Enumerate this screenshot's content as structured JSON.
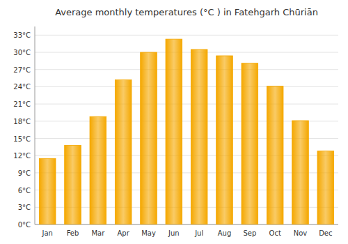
{
  "chart_data": {
    "type": "bar",
    "title": "Average monthly temperatures (°C ) in Fatehgarh Chūriān",
    "categories": [
      "Jan",
      "Feb",
      "Mar",
      "Apr",
      "May",
      "Jun",
      "Jul",
      "Aug",
      "Sep",
      "Oct",
      "Nov",
      "Dec"
    ],
    "values": [
      11.5,
      13.8,
      18.8,
      25.2,
      30.0,
      32.3,
      30.5,
      29.4,
      28.1,
      24.1,
      18.1,
      12.8
    ],
    "color": "#F5A800",
    "ylim": [
      0,
      34.5
    ],
    "yticks": [
      {
        "value": 0,
        "label": "0°C"
      },
      {
        "value": 3,
        "label": "3°C"
      },
      {
        "value": 6,
        "label": "6°C"
      },
      {
        "value": 9,
        "label": "9°C"
      },
      {
        "value": 12,
        "label": "12°C"
      },
      {
        "value": 15,
        "label": "15°C"
      },
      {
        "value": 18,
        "label": "18°C"
      },
      {
        "value": 21,
        "label": "21°C"
      },
      {
        "value": 24,
        "label": "24°C"
      },
      {
        "value": 27,
        "label": "27°C"
      },
      {
        "value": 30,
        "label": "30°C"
      },
      {
        "value": 33,
        "label": "33°C"
      }
    ],
    "grid": true
  }
}
